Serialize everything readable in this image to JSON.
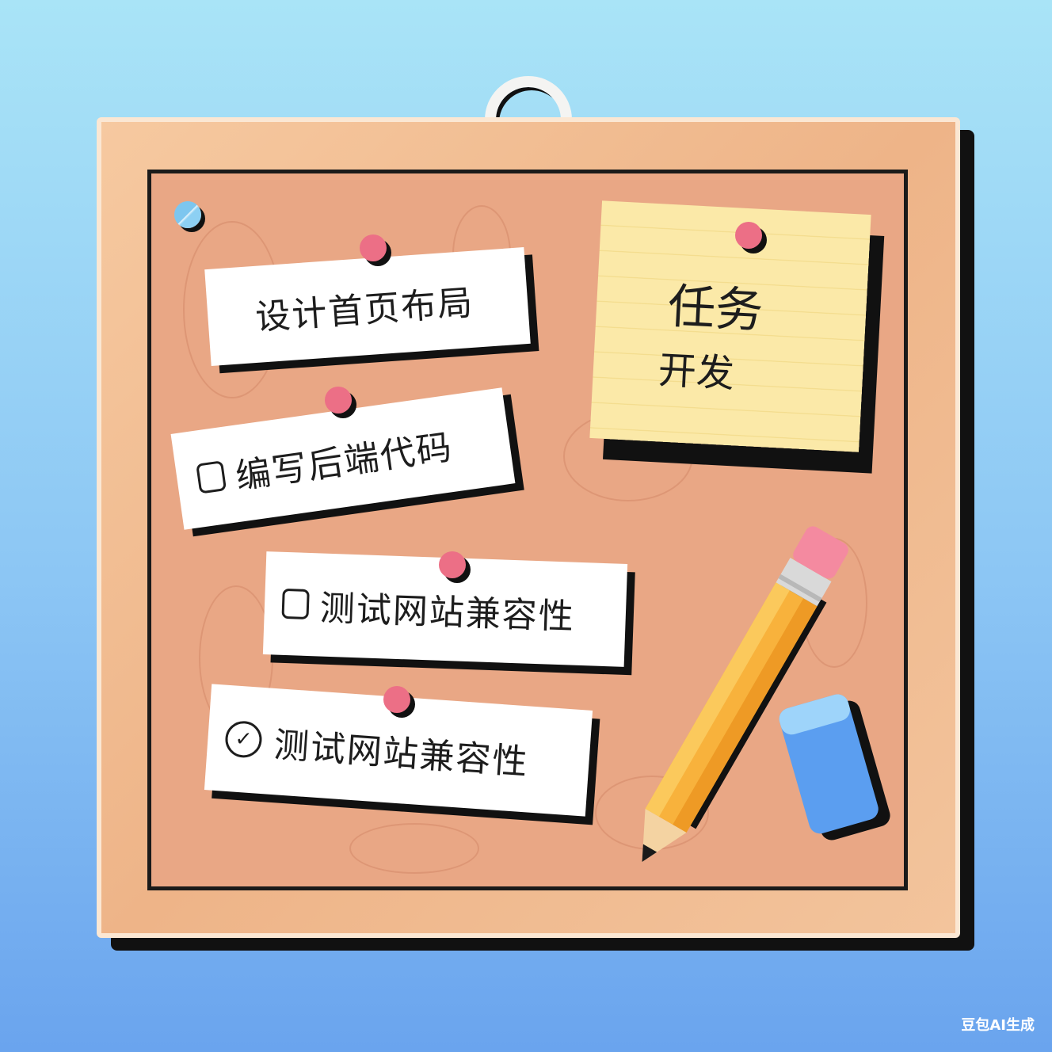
{
  "board": {
    "sticky_note": {
      "line1": "任务",
      "line2": "开发"
    },
    "tasks": [
      {
        "label": "设计首页布局",
        "marker": "none"
      },
      {
        "label": "编写后端代码",
        "marker": "checkbox"
      },
      {
        "label": "测试网站兼容性",
        "marker": "checkbox"
      },
      {
        "label": "测试网站兼容性",
        "marker": "checked-circle"
      }
    ]
  },
  "icons": {
    "check_glyph": "✓"
  },
  "colors": {
    "background_top": "#a9e4f7",
    "background_bottom": "#6aa4ee",
    "cork": "#e9a785",
    "frame": "#f6c9a0",
    "pin": "#ec6f86",
    "sticky": "#fbe9a8",
    "pencil": "#f8b23c",
    "eraser": "#5b9ef0"
  },
  "watermark": "豆包AI生成"
}
